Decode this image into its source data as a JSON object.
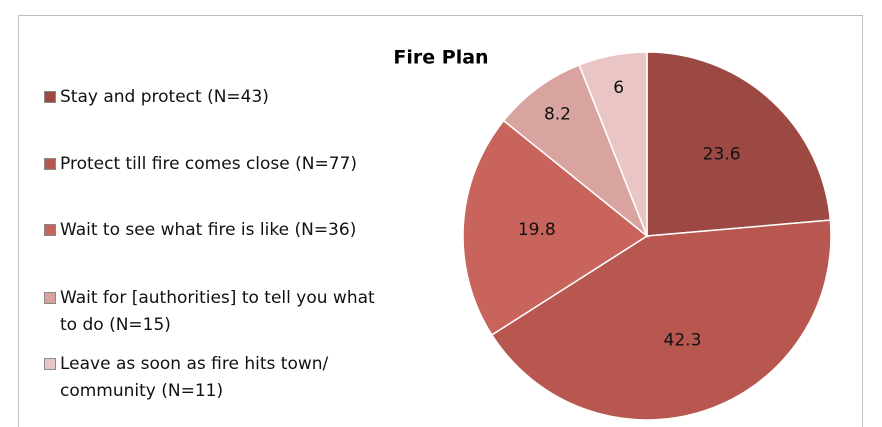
{
  "chart_data": {
    "type": "pie",
    "title": "Fire Plan",
    "categories": [
      "Stay and protect (N=43)",
      "Protect till fire comes close (N=77)",
      "Wait to see what fire is like (N=36)",
      "Wait for [authorities] to tell you what to do (N=15)",
      "Leave as soon as fire hits town/ community (N=11)"
    ],
    "values": [
      23.6,
      42.3,
      19.8,
      8.2,
      6
    ],
    "colors": [
      "#9c4843",
      "#b8574f",
      "#c8645b",
      "#d9a3a0",
      "#e9c6c5"
    ],
    "legend": "left"
  }
}
